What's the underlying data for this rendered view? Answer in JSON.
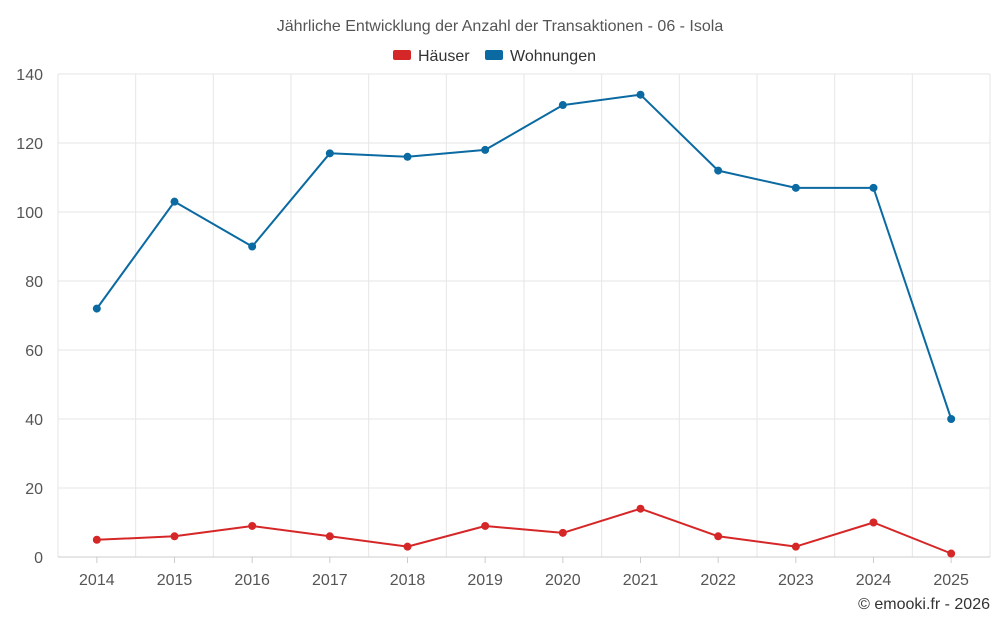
{
  "chart_data": {
    "type": "line",
    "title": "Jährliche Entwicklung der Anzahl der Transaktionen - 06 - Isola",
    "categories": [
      "2014",
      "2015",
      "2016",
      "2017",
      "2018",
      "2019",
      "2020",
      "2021",
      "2022",
      "2023",
      "2024",
      "2025"
    ],
    "ylim": [
      0,
      140
    ],
    "yticks": [
      0,
      20,
      40,
      60,
      80,
      100,
      120,
      140
    ],
    "grid": true,
    "legend_position": "top-center",
    "series": [
      {
        "name": "Häuser",
        "color": "#d62728",
        "values": [
          5,
          6,
          9,
          6,
          3,
          9,
          7,
          14,
          6,
          3,
          10,
          1
        ]
      },
      {
        "name": "Wohnungen",
        "color": "#0a6aa1",
        "values": [
          72,
          103,
          90,
          117,
          116,
          118,
          131,
          134,
          112,
          107,
          107,
          40
        ]
      }
    ],
    "credit": "© emooki.fr - 2026"
  }
}
